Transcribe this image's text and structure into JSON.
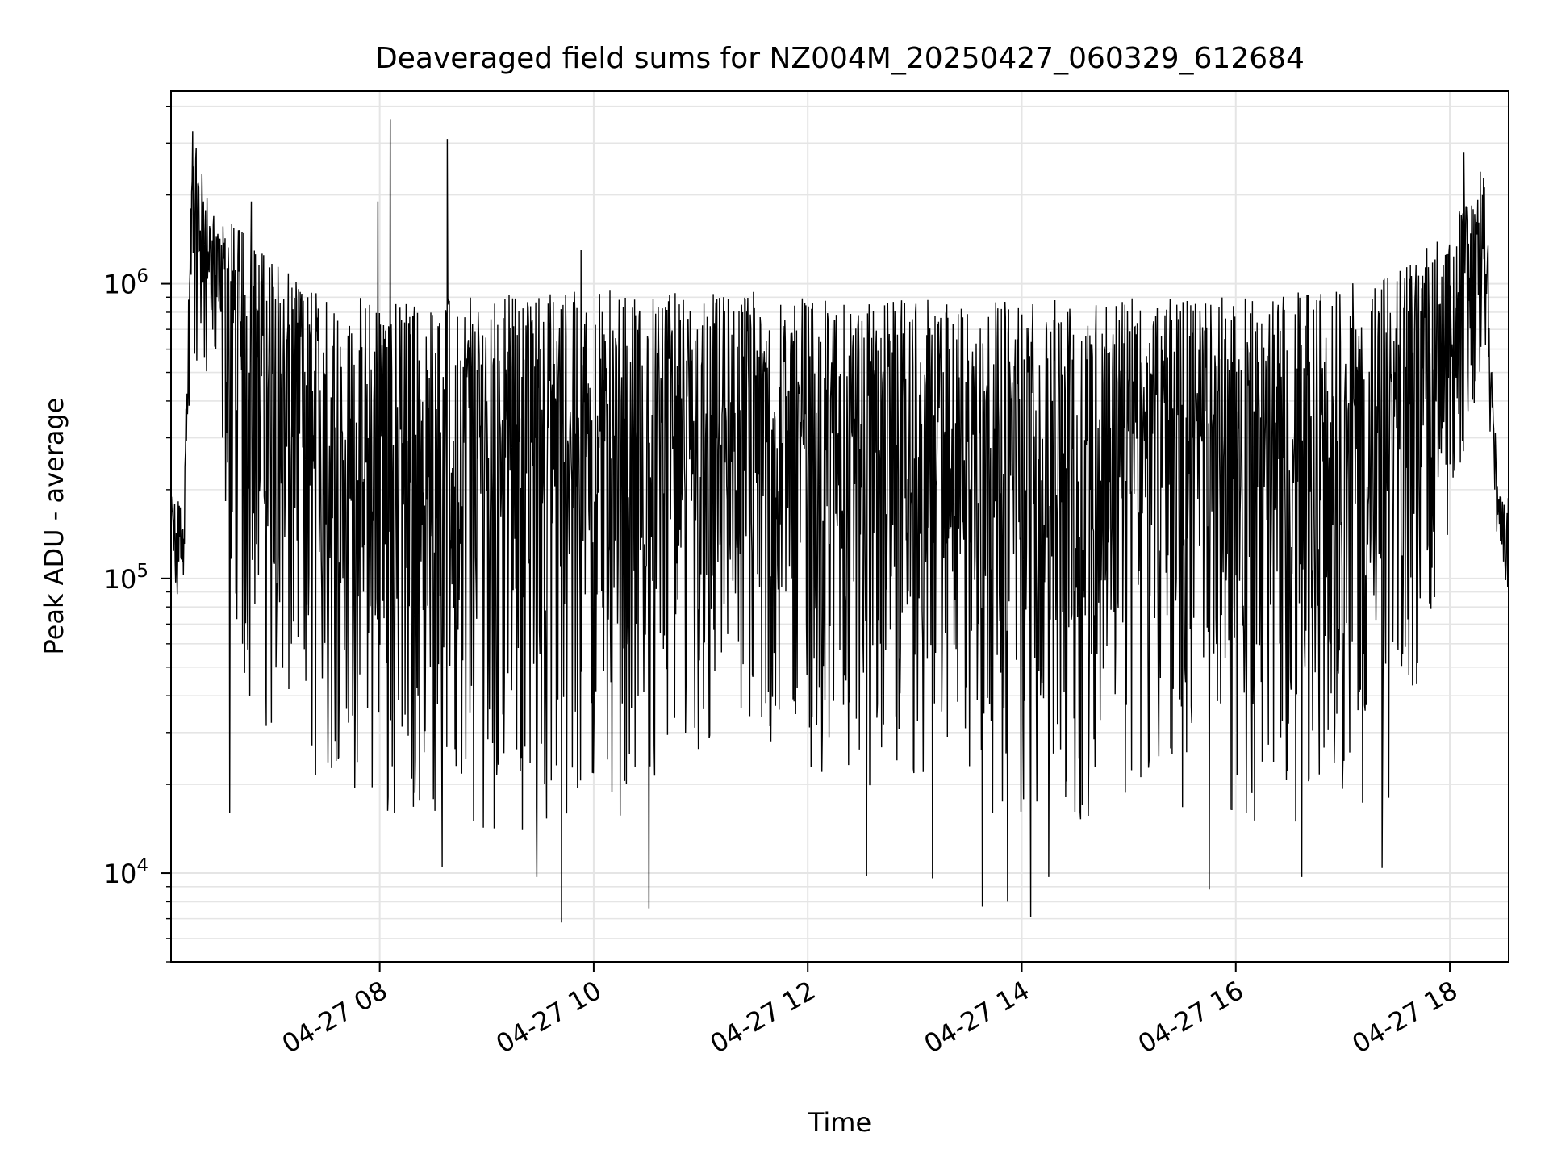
{
  "chart_data": {
    "type": "line",
    "title": "Deaveraged field sums for NZ004M_20250427_060329_612684",
    "xlabel": "Time",
    "ylabel": "Peak ADU - average",
    "yscale": "log",
    "ylim": [
      5000,
      4500000
    ],
    "xlim": [
      "2025-04-27 06:03",
      "2025-04-27 18:33"
    ],
    "grid": true,
    "line_color": "#000000",
    "grid_color": "#e5e5e5",
    "x_ticks": [
      {
        "value": "2025-04-27 08:00",
        "label": "04-27 08"
      },
      {
        "value": "2025-04-27 10:00",
        "label": "04-27 10"
      },
      {
        "value": "2025-04-27 12:00",
        "label": "04-27 12"
      },
      {
        "value": "2025-04-27 14:00",
        "label": "04-27 14"
      },
      {
        "value": "2025-04-27 16:00",
        "label": "04-27 16"
      },
      {
        "value": "2025-04-27 18:00",
        "label": "04-27 18"
      }
    ],
    "y_ticks": [
      {
        "value": 10000,
        "base": "10",
        "exp": "4"
      },
      {
        "value": 100000,
        "base": "10",
        "exp": "5"
      },
      {
        "value": 1000000,
        "base": "10",
        "exp": "6"
      }
    ],
    "series": [
      {
        "x_start": "2025-04-27 06:03",
        "x_end": "2025-04-27 18:33",
        "points_per_sample": 2,
        "y_envelope": [
          {
            "t": "2025-04-27 06:03",
            "lo": 70000,
            "hi": 190000
          },
          {
            "t": "2025-04-27 06:10",
            "lo": 85000,
            "hi": 180000
          },
          {
            "t": "2025-04-27 06:15",
            "lo": 600000,
            "hi": 3300000
          },
          {
            "t": "2025-04-27 06:25",
            "lo": 400000,
            "hi": 1800000
          },
          {
            "t": "2025-04-27 06:45",
            "lo": 40000,
            "hi": 1500000
          },
          {
            "t": "2025-04-27 07:15",
            "lo": 20000,
            "hi": 1000000
          },
          {
            "t": "2025-04-27 07:45",
            "lo": 18000,
            "hi": 900000
          },
          {
            "t": "2025-04-27 08:30",
            "lo": 14000,
            "hi": 900000
          },
          {
            "t": "2025-04-27 09:30",
            "lo": 14000,
            "hi": 950000
          },
          {
            "t": "2025-04-27 10:30",
            "lo": 16000,
            "hi": 950000
          },
          {
            "t": "2025-04-27 11:30",
            "lo": 22000,
            "hi": 950000
          },
          {
            "t": "2025-04-27 12:30",
            "lo": 20000,
            "hi": 900000
          },
          {
            "t": "2025-04-27 13:30",
            "lo": 16000,
            "hi": 880000
          },
          {
            "t": "2025-04-27 14:30",
            "lo": 15000,
            "hi": 880000
          },
          {
            "t": "2025-04-27 15:15",
            "lo": 18000,
            "hi": 900000
          },
          {
            "t": "2025-04-27 16:00",
            "lo": 14000,
            "hi": 900000
          },
          {
            "t": "2025-04-27 16:45",
            "lo": 15000,
            "hi": 950000
          },
          {
            "t": "2025-04-27 17:30",
            "lo": 18000,
            "hi": 1100000
          },
          {
            "t": "2025-04-27 18:00",
            "lo": 150000,
            "hi": 1600000
          },
          {
            "t": "2025-04-27 18:20",
            "lo": 500000,
            "hi": 2400000
          },
          {
            "t": "2025-04-27 18:27",
            "lo": 110000,
            "hi": 200000
          },
          {
            "t": "2025-04-27 18:33",
            "lo": 70000,
            "hi": 190000
          }
        ],
        "spikes": [
          {
            "t": "2025-04-27 06:15",
            "y": 3300000
          },
          {
            "t": "2025-04-27 08:06",
            "y": 3600000
          },
          {
            "t": "2025-04-27 08:38",
            "y": 3100000
          },
          {
            "t": "2025-04-27 18:08",
            "y": 2800000
          },
          {
            "t": "2025-04-27 18:17",
            "y": 2400000
          },
          {
            "t": "2025-04-27 09:53",
            "y": 1300000
          },
          {
            "t": "2025-04-27 06:48",
            "y": 1900000
          },
          {
            "t": "2025-04-27 07:59",
            "y": 1900000
          }
        ],
        "dips": [
          {
            "t": "2025-04-27 06:36",
            "y": 16000
          },
          {
            "t": "2025-04-27 08:35",
            "y": 10500
          },
          {
            "t": "2025-04-27 09:28",
            "y": 9700
          },
          {
            "t": "2025-04-27 09:42",
            "y": 6800
          },
          {
            "t": "2025-04-27 10:31",
            "y": 7600
          },
          {
            "t": "2025-04-27 12:33",
            "y": 9800
          },
          {
            "t": "2025-04-27 13:10",
            "y": 9600
          },
          {
            "t": "2025-04-27 13:38",
            "y": 7700
          },
          {
            "t": "2025-04-27 13:52",
            "y": 8000
          },
          {
            "t": "2025-04-27 14:05",
            "y": 7100
          },
          {
            "t": "2025-04-27 14:15",
            "y": 9700
          },
          {
            "t": "2025-04-27 15:45",
            "y": 8800
          },
          {
            "t": "2025-04-27 16:37",
            "y": 9700
          },
          {
            "t": "2025-04-27 17:22",
            "y": 10400
          }
        ]
      }
    ]
  }
}
